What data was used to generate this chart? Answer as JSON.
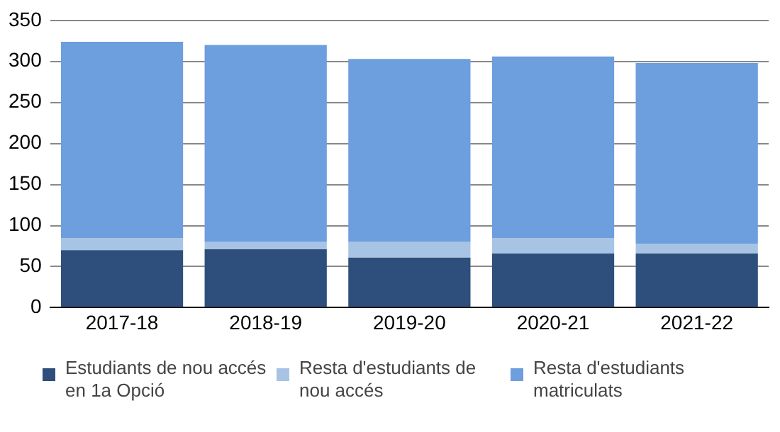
{
  "chart_data": {
    "type": "bar",
    "stacked": true,
    "categories": [
      "2017-18",
      "2018-19",
      "2019-20",
      "2020-21",
      "2021-22"
    ],
    "series": [
      {
        "name": "Estudiants de nou accés en 1a Opció",
        "color": "#2e4f7c",
        "values": [
          70,
          71,
          61,
          66,
          66
        ]
      },
      {
        "name": "Resta d'estudiants de nou accés",
        "color": "#a8c4e4",
        "values": [
          15,
          9,
          19,
          19,
          12
        ]
      },
      {
        "name": "Resta d'estudiants matriculats",
        "color": "#6d9ede",
        "values": [
          239,
          240,
          223,
          221,
          220
        ]
      }
    ],
    "ylim": [
      0,
      350
    ],
    "yticks": [
      0,
      50,
      100,
      150,
      200,
      250,
      300,
      350
    ],
    "grid": "y",
    "legend": "bottom"
  }
}
